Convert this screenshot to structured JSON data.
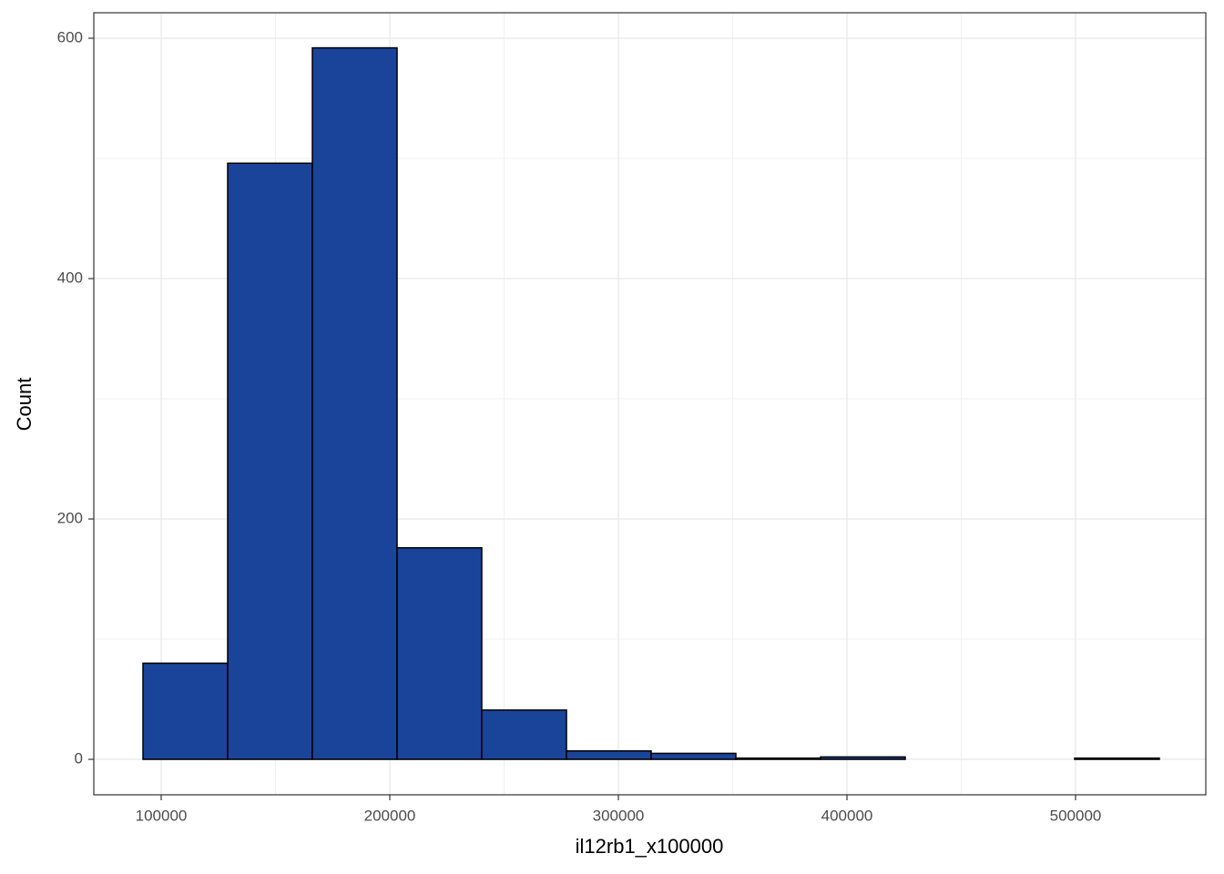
{
  "chart_data": {
    "type": "histogram",
    "x_label": "il12rb1_x100000",
    "y_label": "Count",
    "bins": [
      92030,
      129082,
      166134,
      203186,
      240238,
      277290,
      314342,
      351394,
      388446,
      425498,
      462550,
      499602,
      536654
    ],
    "values": [
      80,
      496,
      592,
      176,
      41,
      7,
      5,
      1,
      2,
      0,
      0,
      1
    ],
    "color": "#1a4499",
    "xlim": [
      70518,
      556972
    ],
    "xticks": [
      100000,
      200000,
      300000,
      400000,
      500000
    ],
    "ylim": [
      -29.5,
      621.2
    ],
    "yticks": [
      0,
      200,
      400,
      600
    ],
    "grid": true
  }
}
